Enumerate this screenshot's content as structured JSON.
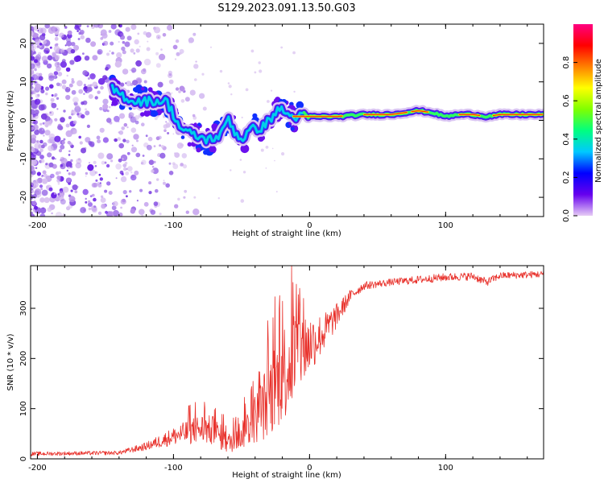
{
  "title": "S129.2023.091.13.50.G03",
  "chart_data": [
    {
      "type": "heatmap",
      "name": "spectrogram",
      "xlabel": "Height of straight line (km)",
      "ylabel": "Frequency (Hz)",
      "xlim": [
        -205,
        172
      ],
      "ylim": [
        -25,
        25
      ],
      "xticks": [
        -200,
        -100,
        0,
        100
      ],
      "yticks": [
        -20,
        -10,
        0,
        10,
        20
      ],
      "colorbar": {
        "label": "Normalized spectral amplitude",
        "range": [
          0,
          1
        ],
        "ticks": [
          0.0,
          0.2,
          0.4,
          0.6,
          0.8
        ],
        "colors": [
          "#e6ccf5",
          "#6600ee",
          "#0000ff",
          "#00c8ff",
          "#00ff80",
          "#80ff00",
          "#ffff00",
          "#ff8000",
          "#ff0000",
          "#ff0080"
        ]
      },
      "ridge": {
        "description": "dominant spectral ridge (frequency in Hz vs height in km)",
        "x": [
          -145,
          -130,
          -115,
          -105,
          -95,
          -85,
          -75,
          -65,
          -60,
          -55,
          -50,
          -45,
          -40,
          -35,
          -30,
          -25,
          -20,
          -15,
          -10,
          -5,
          0,
          10,
          20,
          40,
          60,
          80,
          90,
          100,
          110,
          120,
          130,
          140,
          150,
          160,
          172
        ],
        "y": [
          8,
          5,
          5,
          5,
          -2,
          -4,
          -5,
          -4,
          1,
          -3,
          -5,
          -3,
          -2,
          -2,
          0,
          2,
          3,
          1,
          1,
          1,
          1,
          1,
          1,
          1.5,
          1.5,
          2.5,
          2,
          1,
          1.5,
          1.5,
          1,
          1.5,
          1.5,
          1.5,
          1.5
        ]
      }
    },
    {
      "type": "line",
      "name": "snr",
      "xlabel": "Height of straight line (km)",
      "ylabel": "SNR (10 * v/v)",
      "xlim": [
        -205,
        172
      ],
      "ylim": [
        0,
        385
      ],
      "xticks": [
        -200,
        -100,
        0,
        100
      ],
      "yticks": [
        0,
        100,
        200,
        300
      ],
      "color": "#e8302a",
      "envelope": {
        "x": [
          -205,
          -140,
          -120,
          -100,
          -80,
          -70,
          -60,
          -50,
          -40,
          -30,
          -20,
          -10,
          0,
          10,
          20,
          30,
          40,
          60,
          80,
          100,
          120,
          130,
          140,
          172
        ],
        "y": [
          10,
          12,
          25,
          45,
          60,
          55,
          30,
          50,
          80,
          120,
          170,
          210,
          230,
          250,
          285,
          325,
          345,
          352,
          357,
          362,
          364,
          352,
          365,
          368
        ],
        "noise": [
          4,
          4,
          8,
          18,
          30,
          30,
          20,
          30,
          50,
          80,
          100,
          100,
          60,
          40,
          25,
          12,
          8,
          7,
          8,
          8,
          8,
          8,
          7,
          7
        ]
      }
    }
  ]
}
